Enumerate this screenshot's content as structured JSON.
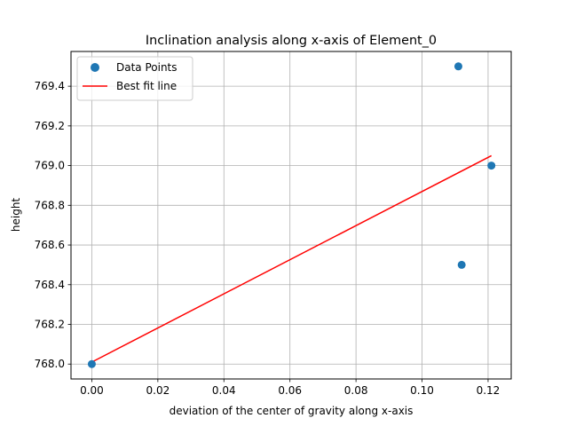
{
  "chart_data": {
    "type": "scatter",
    "title": "Inclination analysis along x-axis of Element_0",
    "xlabel": "deviation of the center of gravity along x-axis",
    "ylabel": "height",
    "xlim": [
      -0.0063,
      0.127
    ],
    "ylim": [
      767.925,
      769.575
    ],
    "x_ticks": [
      0.0,
      0.02,
      0.04,
      0.06,
      0.08,
      0.1,
      0.12
    ],
    "x_tick_labels": [
      "0.00",
      "0.02",
      "0.04",
      "0.06",
      "0.08",
      "0.10",
      "0.12"
    ],
    "y_ticks": [
      768.0,
      768.2,
      768.4,
      768.6,
      768.8,
      769.0,
      769.2,
      769.4
    ],
    "y_tick_labels": [
      "768.0",
      "768.2",
      "768.4",
      "768.6",
      "768.8",
      "769.0",
      "769.2",
      "769.4"
    ],
    "grid": true,
    "legend_position": "upper-left",
    "series": [
      {
        "name": "Data Points",
        "kind": "scatter",
        "color": "#1f77b4",
        "points": [
          {
            "x": 0.0,
            "y": 768.0
          },
          {
            "x": 0.111,
            "y": 769.5
          },
          {
            "x": 0.112,
            "y": 768.5
          },
          {
            "x": 0.121,
            "y": 769.0
          }
        ]
      },
      {
        "name": "Best fit line",
        "kind": "line",
        "color": "#ff0000",
        "points": [
          {
            "x": 0.0,
            "y": 768.01
          },
          {
            "x": 0.121,
            "y": 769.05
          }
        ]
      }
    ]
  }
}
